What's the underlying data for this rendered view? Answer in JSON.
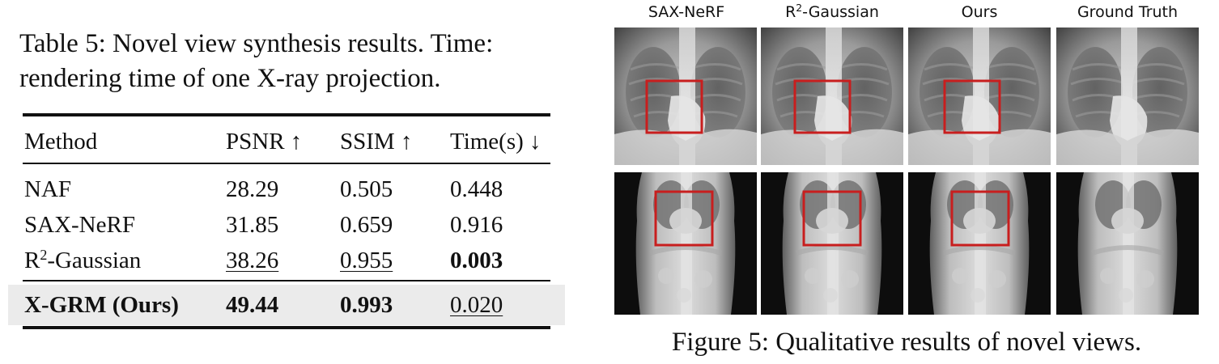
{
  "table": {
    "caption": "Table 5: Novel view synthesis results. Time: rendering time of one X-ray projection.",
    "headers": [
      "Method",
      "PSNR ↑",
      "SSIM ↑",
      "Time(s) ↓"
    ],
    "rows": [
      {
        "method": "NAF",
        "psnr": "28.29",
        "ssim": "0.505",
        "time": "0.448"
      },
      {
        "method_base": "SAX-NeRF",
        "method": "SAX-NeRF",
        "psnr": "31.85",
        "ssim": "0.659",
        "time": "0.916"
      },
      {
        "method_base": "R",
        "method_sup": "2",
        "method_rest": "-Gaussian",
        "psnr": "38.26",
        "ssim": "0.955",
        "time": "0.003"
      },
      {
        "method": "X-GRM (Ours)",
        "psnr": "49.44",
        "ssim": "0.993",
        "time": "0.020"
      }
    ]
  },
  "figure": {
    "columns": [
      {
        "label": "SAX-NeRF"
      },
      {
        "label_base": "R",
        "label_sup": "2",
        "label_rest": "-Gaussian"
      },
      {
        "label": "Ours"
      },
      {
        "label": "Ground Truth"
      }
    ],
    "highlight_color": "#c81e1e",
    "caption": "Figure 5: Qualitative results of novel views."
  }
}
